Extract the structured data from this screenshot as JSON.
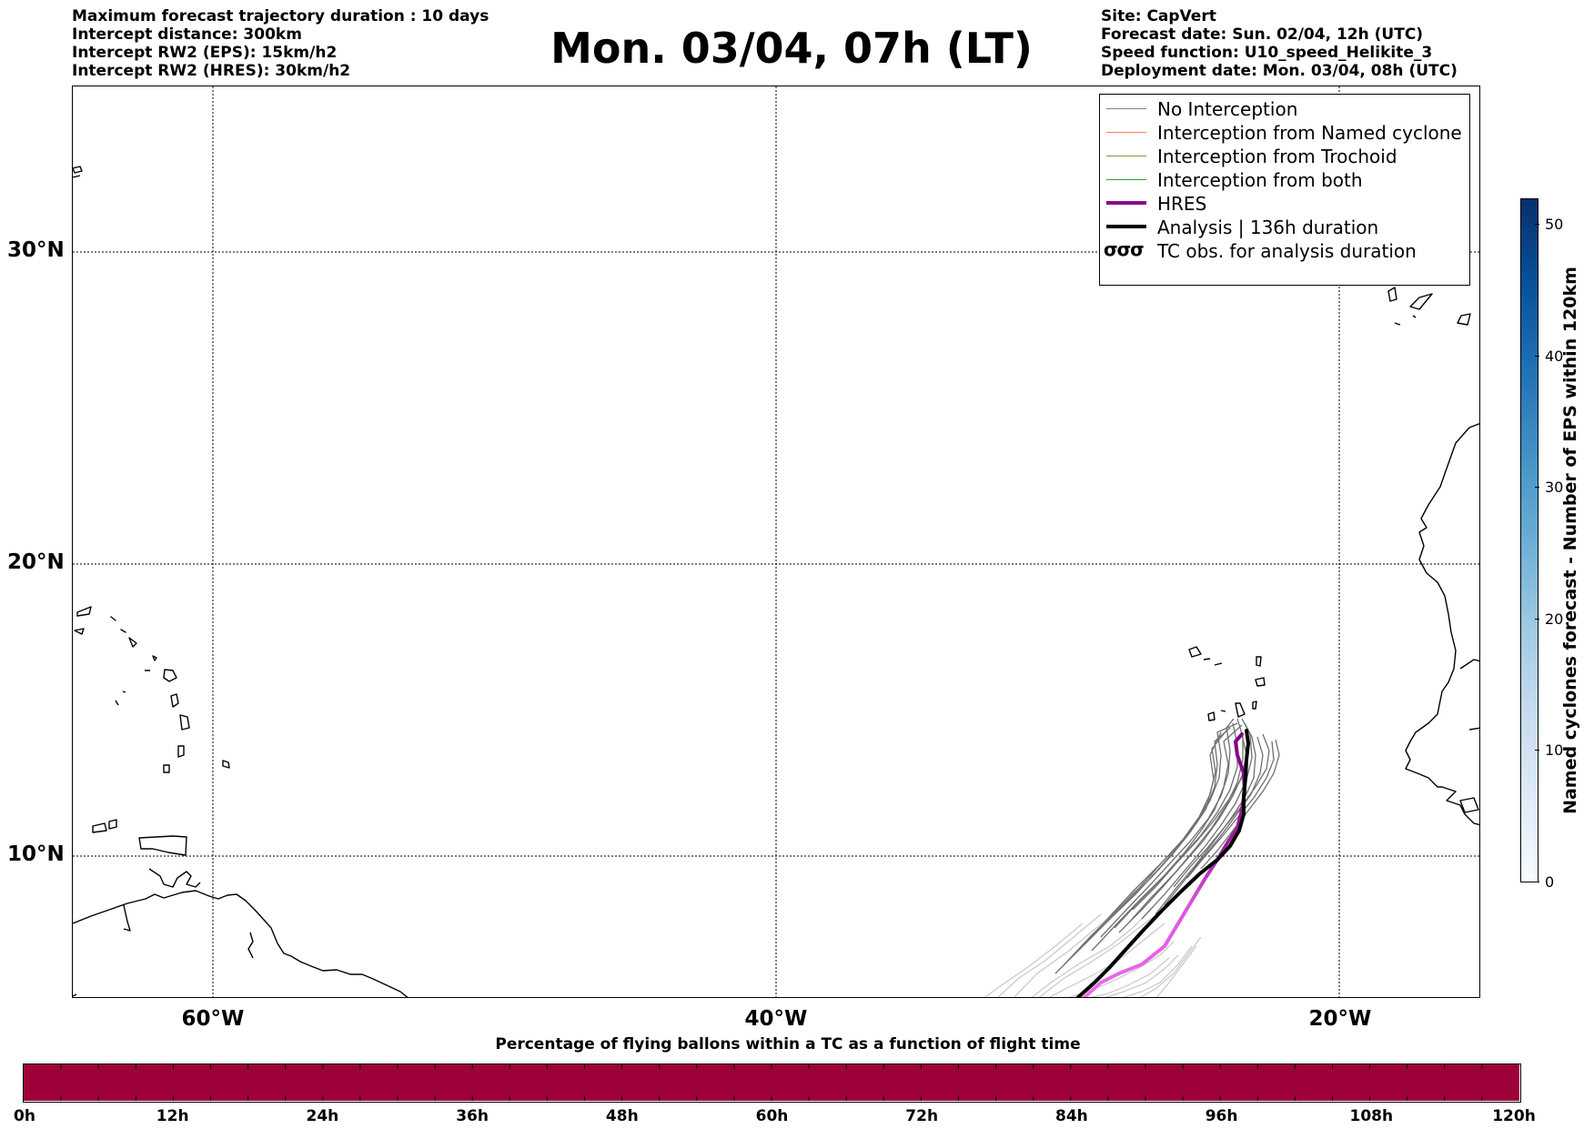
{
  "header_left": [
    "Maximum forecast trajectory duration : 10 days",
    "Intercept distance: 300km",
    "Intercept RW2 (EPS):  15km/h2",
    "Intercept RW2 (HRES): 30km/h2"
  ],
  "title": "Mon. 03/04, 07h (LT)",
  "header_right": [
    "Site: CapVert",
    "Forecast date: Sun. 02/04, 12h (UTC)",
    "Speed function: U10_speed_Helikite_3",
    "Deployment date: Mon. 03/04, 08h (UTC)"
  ],
  "map": {
    "lat_labels": [
      "30°N",
      "20°N",
      "10°N"
    ],
    "lon_labels": [
      "60°W",
      "40°W",
      "20°W"
    ]
  },
  "legend": [
    {
      "label": "No Interception",
      "color": "#808080",
      "kind": "line-thin"
    },
    {
      "label": "Interception from Named cyclone",
      "color": "#ff7f50",
      "kind": "line-thin"
    },
    {
      "label": "Interception from Trochoid",
      "color": "#9a8a30",
      "kind": "line-thin"
    },
    {
      "label": "Interception from both",
      "color": "#2ca02c",
      "kind": "line-thin"
    },
    {
      "label": "HRES",
      "color": "#8b0a8b",
      "kind": "line-thick"
    },
    {
      "label": "Analysis | 136h duration",
      "color": "#000000",
      "kind": "line-thick"
    },
    {
      "label": "TC obs. for analysis duration",
      "color": "#000000",
      "kind": "tc-symbol"
    }
  ],
  "colorbar_right": {
    "label": "Named cyclones forecast - Number of EPS within 120km",
    "ticks": [
      "0",
      "10",
      "20",
      "30",
      "40",
      "50"
    ],
    "range": [
      0,
      52
    ]
  },
  "colorbar_bottom": {
    "title": "Percentage of flying ballons within a TC as a function of flight time",
    "ticks": [
      "0h",
      "12h",
      "24h",
      "36h",
      "48h",
      "60h",
      "72h",
      "84h",
      "96h",
      "108h",
      "120h"
    ],
    "fill_color": "#9e003a"
  }
}
